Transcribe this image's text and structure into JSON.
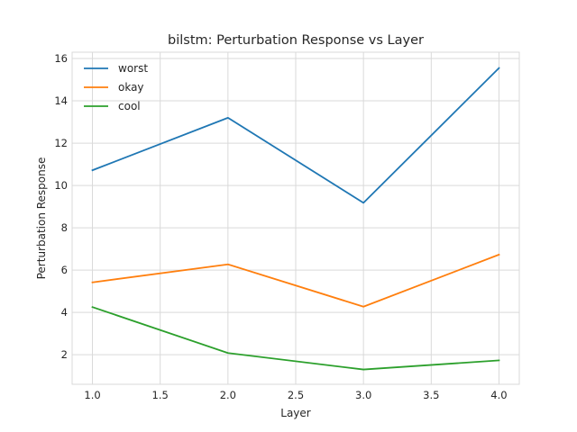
{
  "chart_data": {
    "type": "line",
    "title": "bilstm: Perturbation Response vs Layer",
    "xlabel": "Layer",
    "ylabel": "Perturbation Response",
    "x": [
      1.0,
      2.0,
      3.0,
      4.0
    ],
    "xlim": [
      0.85,
      4.15
    ],
    "ylim": [
      0.6,
      16.3
    ],
    "xticks": [
      "1.0",
      "1.5",
      "2.0",
      "2.5",
      "3.0",
      "3.5",
      "4.0"
    ],
    "yticks": [
      "2",
      "4",
      "6",
      "8",
      "10",
      "12",
      "14",
      "16"
    ],
    "grid": true,
    "legend_position": "top-left",
    "series": [
      {
        "name": "worst",
        "color": "#1f77b4",
        "values": [
          10.72,
          13.2,
          9.18,
          15.55
        ]
      },
      {
        "name": "okay",
        "color": "#ff7f0e",
        "values": [
          5.42,
          6.27,
          4.27,
          6.73
        ]
      },
      {
        "name": "cool",
        "color": "#2ca02c",
        "values": [
          4.25,
          2.08,
          1.3,
          1.73
        ]
      }
    ]
  }
}
